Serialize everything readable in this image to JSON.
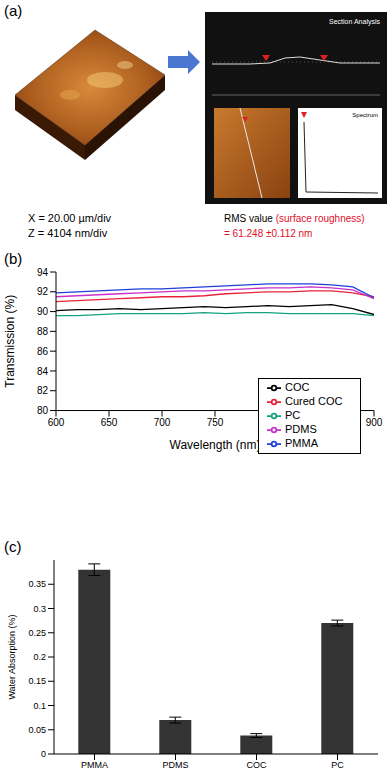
{
  "image_panel": {
    "label": "(a)",
    "scan_caption": [
      "X = 20.00 µm/div",
      "Z = 4104 nm/div"
    ],
    "section_title": "Section Analysis",
    "spectrum_title": "Spectrum",
    "result_label": "RMS value",
    "result_note": "(surface roughness)",
    "result_value": "= 61.248 ±0.112 nm"
  },
  "chart_data": [
    {
      "type": "line",
      "annotations": [
        "(b)"
      ],
      "x_label": "Wavelength (nm)",
      "y_label": "Transmission (%)",
      "x": [
        600,
        620,
        640,
        660,
        680,
        700,
        720,
        740,
        760,
        780,
        800,
        820,
        840,
        860,
        880,
        900
      ],
      "series": [
        {
          "name": "COC",
          "color": "#000000",
          "values": [
            90.1,
            90.2,
            90.2,
            90.3,
            90.2,
            90.3,
            90.4,
            90.5,
            90.4,
            90.5,
            90.6,
            90.5,
            90.6,
            90.7,
            90.3,
            89.7
          ]
        },
        {
          "name": "Cured COC",
          "color": "#e8243c",
          "values": [
            91.0,
            91.1,
            91.2,
            91.3,
            91.4,
            91.5,
            91.5,
            91.6,
            91.8,
            91.9,
            92.0,
            92.0,
            92.1,
            92.1,
            91.9,
            91.5
          ]
        },
        {
          "name": "PMMA",
          "color": "#2040d8",
          "values": [
            91.9,
            92.0,
            92.1,
            92.2,
            92.3,
            92.3,
            92.4,
            92.5,
            92.6,
            92.7,
            92.8,
            92.8,
            92.8,
            92.7,
            92.5,
            91.4
          ]
        },
        {
          "name": "PC",
          "color": "#14a37f",
          "values": [
            89.6,
            89.6,
            89.7,
            89.8,
            89.8,
            89.8,
            89.8,
            89.9,
            89.8,
            89.9,
            89.9,
            89.8,
            89.8,
            89.8,
            89.8,
            89.6
          ]
        },
        {
          "name": "PDMS",
          "color": "#c832c8",
          "values": [
            91.5,
            91.6,
            91.7,
            91.8,
            91.9,
            92.0,
            92.1,
            92.1,
            92.2,
            92.3,
            92.4,
            92.4,
            92.5,
            92.4,
            92.2,
            91.3
          ]
        }
      ],
      "xlim": [
        600,
        900
      ],
      "xticks": [
        600,
        650,
        700,
        750,
        800,
        850,
        900
      ],
      "ylim": [
        80,
        94
      ],
      "yticks": [
        80,
        82,
        84,
        86,
        88,
        90,
        92,
        94
      ],
      "legend": "lower right",
      "grid": false
    },
    {
      "type": "bar",
      "annotations": [
        "(c)"
      ],
      "y_label": "Water Absorption (%)",
      "categories": [
        "PMMA",
        "PDMS",
        "COC",
        "PC"
      ],
      "values": [
        0.38,
        0.07,
        0.038,
        0.27
      ],
      "errors": [
        0.012,
        0.006,
        0.004,
        0.006
      ],
      "color": "#333333",
      "ylim": [
        0,
        0.4
      ],
      "yticks": [
        0,
        0.05,
        0.1,
        0.15,
        0.2,
        0.25,
        0.3,
        0.35
      ],
      "grid": false
    }
  ]
}
